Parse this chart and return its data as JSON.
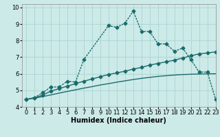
{
  "title": "",
  "xlabel": "Humidex (Indice chaleur)",
  "bg_color": "#cceae8",
  "line_color": "#1a6b6b",
  "grid_color": "#aad4d0",
  "xlim": [
    -0.5,
    23
  ],
  "ylim": [
    4,
    10.2
  ],
  "yticks": [
    4,
    5,
    6,
    7,
    8,
    9,
    10
  ],
  "xticks": [
    0,
    1,
    2,
    3,
    4,
    5,
    6,
    7,
    8,
    9,
    10,
    11,
    12,
    13,
    14,
    15,
    16,
    17,
    18,
    19,
    20,
    21,
    22,
    23
  ],
  "series1_x": [
    0,
    1,
    2,
    3,
    4,
    5,
    6,
    7,
    10,
    11,
    12,
    13,
    14,
    15,
    16,
    17,
    18,
    19,
    20,
    21,
    22,
    23
  ],
  "series1_y": [
    4.45,
    4.55,
    4.85,
    5.2,
    5.2,
    5.55,
    5.5,
    6.85,
    8.9,
    8.8,
    9.05,
    9.78,
    8.55,
    8.55,
    7.8,
    7.8,
    7.35,
    7.55,
    6.85,
    6.1,
    6.1,
    4.45
  ],
  "series2_x": [
    0,
    1,
    2,
    3,
    4,
    5,
    6,
    7,
    8,
    9,
    10,
    11,
    12,
    13,
    14,
    15,
    16,
    17,
    18,
    19,
    20,
    21,
    22,
    23
  ],
  "series2_y": [
    4.45,
    4.55,
    4.7,
    4.95,
    5.1,
    5.25,
    5.4,
    5.55,
    5.68,
    5.82,
    5.95,
    6.05,
    6.15,
    6.28,
    6.38,
    6.52,
    6.62,
    6.72,
    6.82,
    6.95,
    7.08,
    7.2,
    7.25,
    7.32
  ],
  "series3_x": [
    0,
    1,
    2,
    3,
    4,
    5,
    6,
    7,
    8,
    9,
    10,
    11,
    12,
    13,
    14,
    15,
    16,
    17,
    18,
    19,
    20,
    21,
    22,
    23
  ],
  "series3_y": [
    4.45,
    4.52,
    4.62,
    4.72,
    4.83,
    4.93,
    5.03,
    5.13,
    5.22,
    5.32,
    5.4,
    5.49,
    5.57,
    5.65,
    5.72,
    5.78,
    5.84,
    5.88,
    5.92,
    5.95,
    5.97,
    5.98,
    5.99,
    6.0
  ],
  "markersize": 2.5,
  "linewidth": 1.0,
  "xlabel_fontsize": 7,
  "tick_fontsize": 6
}
